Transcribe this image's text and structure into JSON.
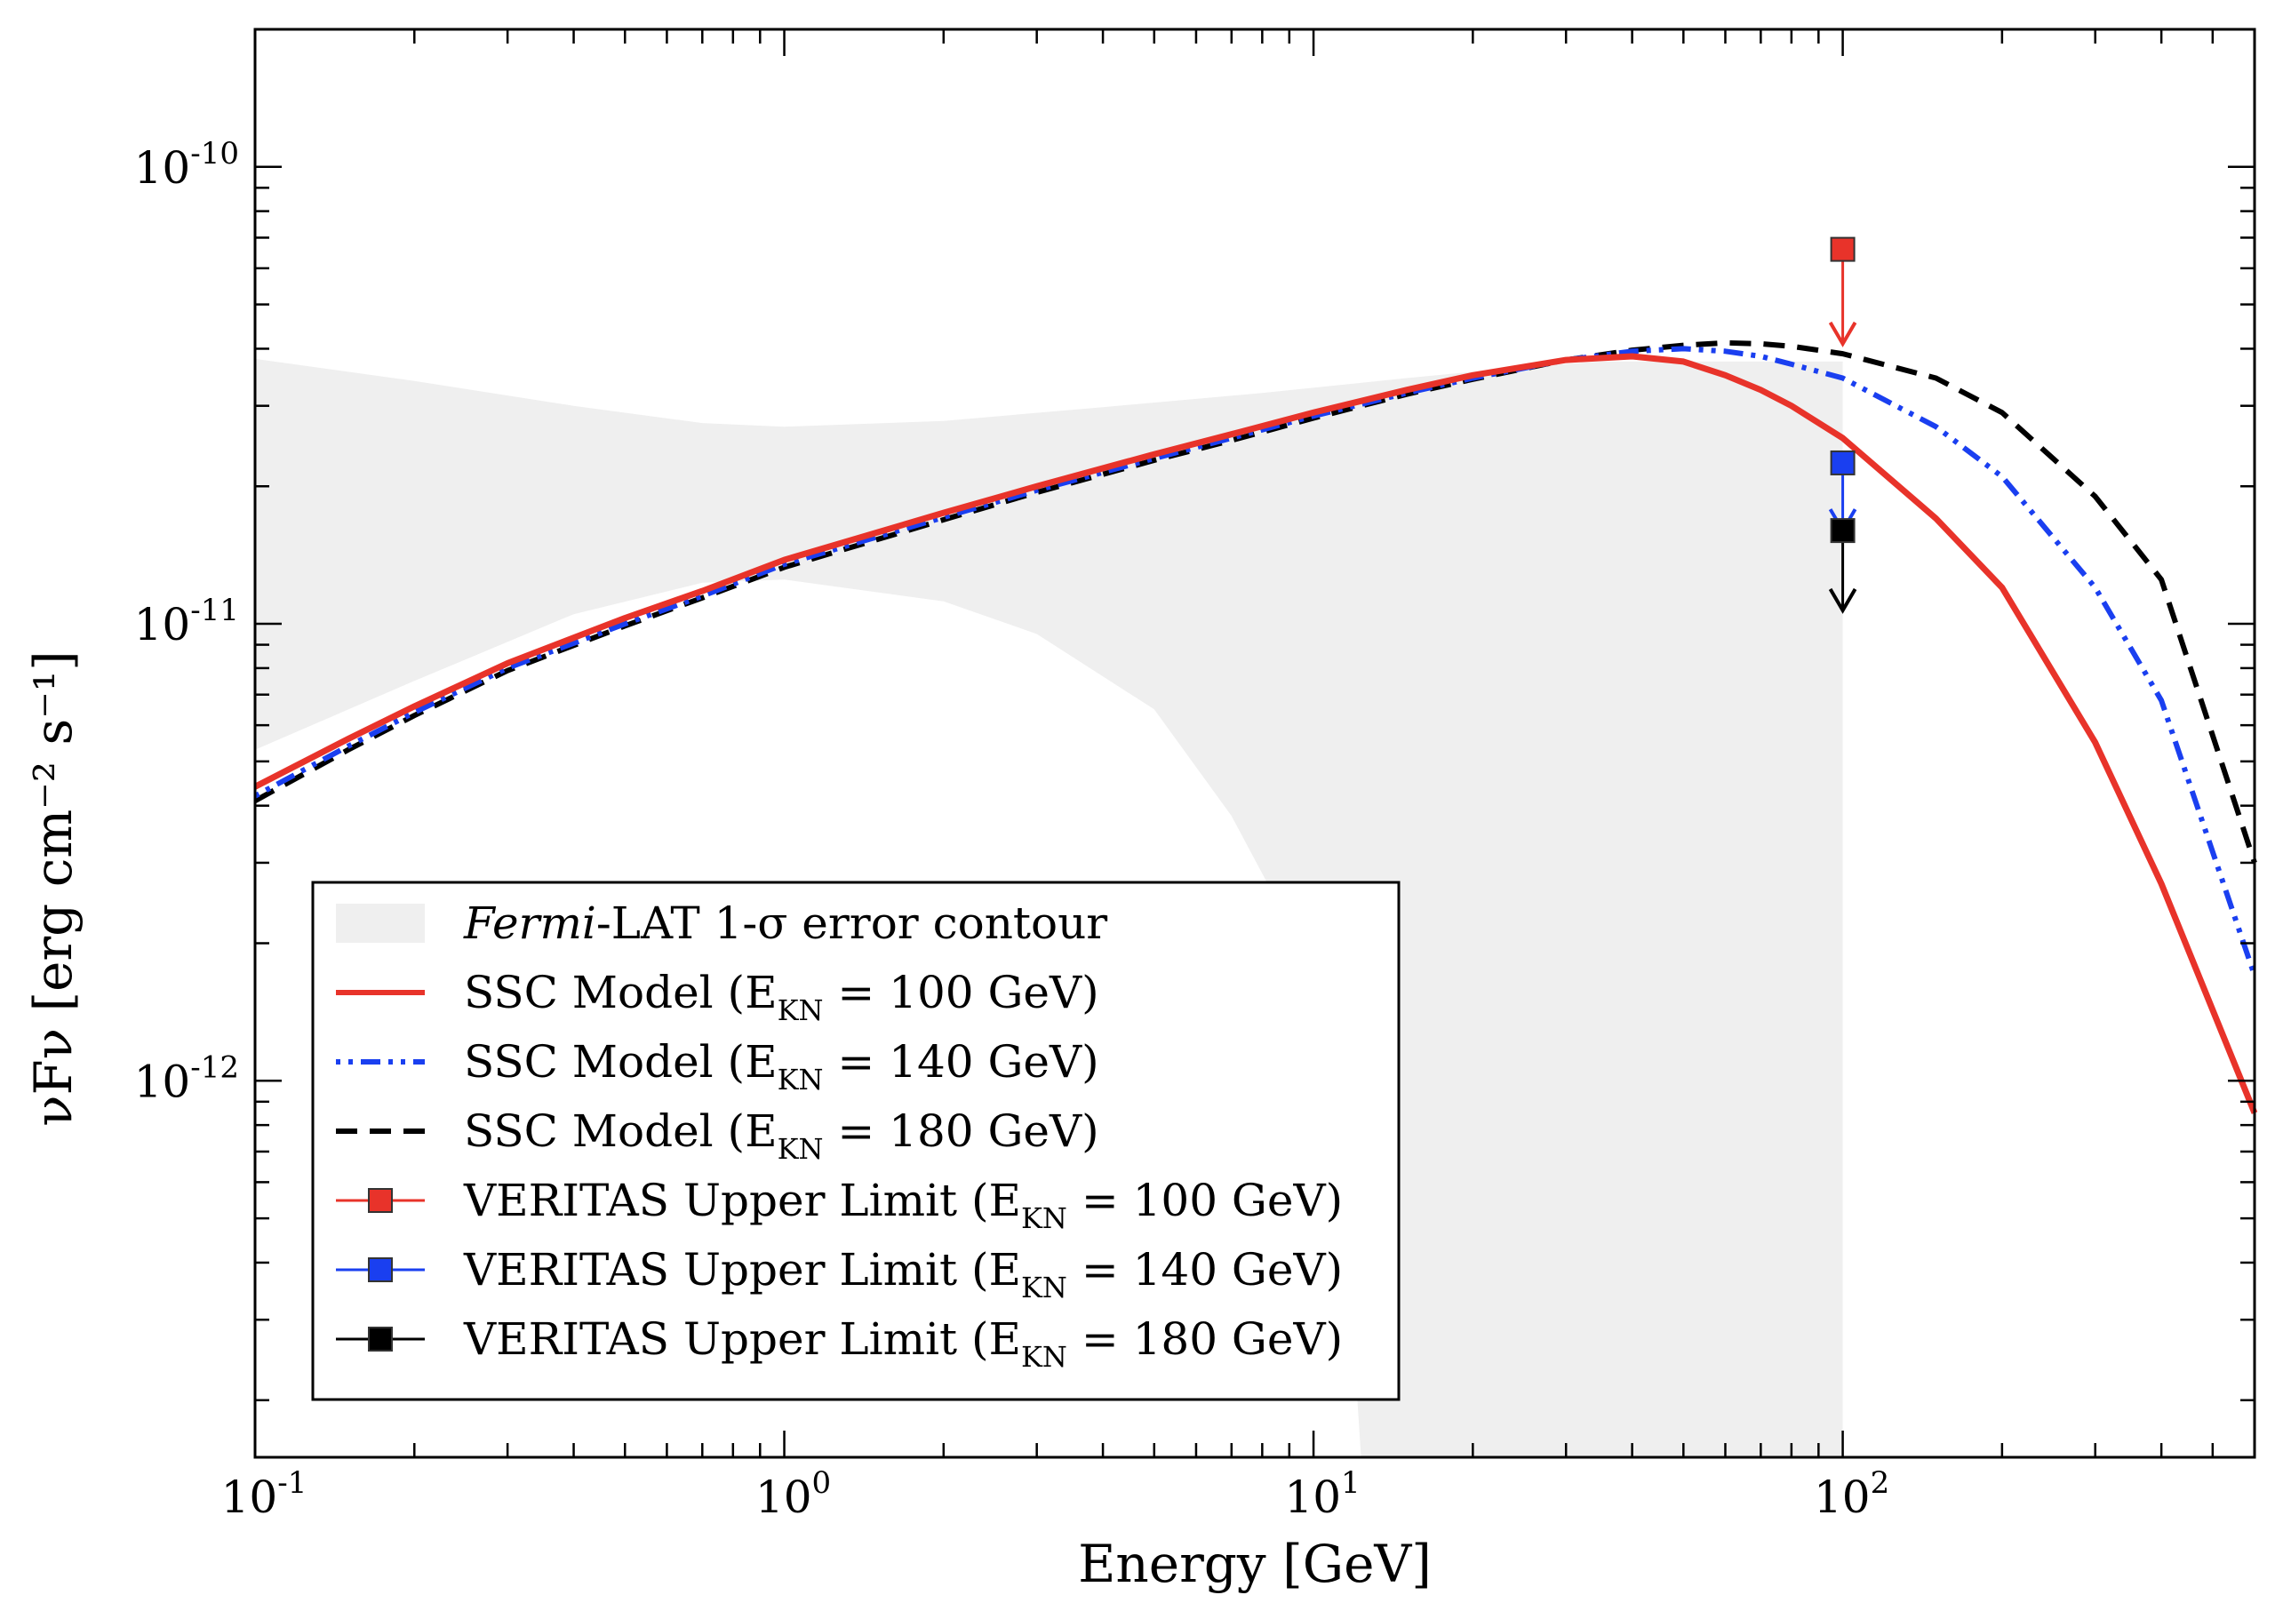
{
  "chart_data": {
    "type": "line",
    "title": "",
    "xlabel": "Energy [GeV]",
    "ylabel": "νFν [erg cm⁻² s⁻¹]",
    "xscale": "log",
    "yscale": "log",
    "xlim": [
      0.1,
      600
    ],
    "ylim": [
      1.5e-13,
      2e-10
    ],
    "x_ticks": [
      {
        "value": 0.1,
        "base": "10",
        "exp": "-1"
      },
      {
        "value": 1,
        "base": "10",
        "exp": "0"
      },
      {
        "value": 10,
        "base": "10",
        "exp": "1"
      },
      {
        "value": 100,
        "base": "10",
        "exp": "2"
      }
    ],
    "y_ticks": [
      {
        "value": 1e-12,
        "base": "10",
        "exp": "-12"
      },
      {
        "value": 1e-11,
        "base": "10",
        "exp": "-11"
      },
      {
        "value": 1e-10,
        "base": "10",
        "exp": "-10"
      }
    ],
    "band": {
      "name": "Fermi-LAT 1-σ error contour",
      "label_italic": "Fermi",
      "label_rest": "-LAT 1-σ error contour",
      "color": "#efefef",
      "upper": [
        [
          0.1,
          3.8e-11
        ],
        [
          0.2,
          3.4e-11
        ],
        [
          0.4,
          3e-11
        ],
        [
          0.7,
          2.75e-11
        ],
        [
          1,
          2.7e-11
        ],
        [
          2,
          2.78e-11
        ],
        [
          4,
          2.98e-11
        ],
        [
          8,
          3.2e-11
        ],
        [
          15,
          3.45e-11
        ],
        [
          25,
          3.65e-11
        ],
        [
          35,
          3.75e-11
        ]
      ],
      "lower": [
        [
          0.1,
          5.3e-12
        ],
        [
          0.2,
          7.5e-12
        ],
        [
          0.4,
          1.05e-11
        ],
        [
          0.7,
          1.23e-11
        ],
        [
          1,
          1.25e-11
        ],
        [
          2,
          1.12e-11
        ],
        [
          3,
          9.5e-12
        ],
        [
          5,
          6.5e-12
        ],
        [
          7,
          3.8e-12
        ],
        [
          9,
          2.2e-12
        ],
        [
          10.5,
          1e-12
        ],
        [
          11.5,
          5e-13
        ],
        [
          12.3,
          1.5e-13
        ]
      ],
      "right_edge_x": 100
    },
    "series": [
      {
        "name": "SSC Model (E_KN = 100 GeV)",
        "label_main": "SSC Model (E",
        "label_sub": "KN",
        "label_end": " = 100 GeV)",
        "color": "#e8332a",
        "style": "solid",
        "x": [
          0.1,
          0.15,
          0.2,
          0.3,
          0.5,
          0.7,
          1,
          2,
          3,
          5,
          7,
          10,
          15,
          20,
          30,
          40,
          50,
          60,
          70,
          80,
          100,
          150,
          200,
          300,
          400,
          600
        ],
        "y": [
          4.4e-12,
          5.6e-12,
          6.6e-12,
          8.2e-12,
          1.03e-11,
          1.18e-11,
          1.38e-11,
          1.75e-11,
          2e-11,
          2.35e-11,
          2.6e-11,
          2.9e-11,
          3.25e-11,
          3.5e-11,
          3.78e-11,
          3.85e-11,
          3.75e-11,
          3.5e-11,
          3.25e-11,
          3e-11,
          2.55e-11,
          1.7e-11,
          1.2e-11,
          5.5e-12,
          2.7e-12,
          8.5e-13
        ]
      },
      {
        "name": "SSC Model (E_KN = 140 GeV)",
        "label_main": "SSC Model (E",
        "label_sub": "KN",
        "label_end": " = 140 GeV)",
        "color": "#1a3ff0",
        "style": "dotdash",
        "x": [
          0.1,
          0.15,
          0.2,
          0.3,
          0.5,
          0.7,
          1,
          2,
          3,
          5,
          7,
          10,
          15,
          20,
          30,
          40,
          50,
          60,
          70,
          80,
          100,
          150,
          200,
          300,
          400,
          600
        ],
        "y": [
          4.2e-12,
          5.4e-12,
          6.4e-12,
          8e-12,
          1e-11,
          1.15e-11,
          1.35e-11,
          1.71e-11,
          1.96e-11,
          2.3e-11,
          2.55e-11,
          2.85e-11,
          3.2e-11,
          3.45e-11,
          3.78e-11,
          3.95e-11,
          4e-11,
          3.95e-11,
          3.85e-11,
          3.7e-11,
          3.45e-11,
          2.7e-11,
          2.1e-11,
          1.2e-11,
          6.8e-12,
          1.7e-12
        ]
      },
      {
        "name": "SSC Model (E_KN = 180 GeV)",
        "label_main": "SSC Model (E",
        "label_sub": "KN",
        "label_end": " = 180 GeV)",
        "color": "#000000",
        "style": "dashed",
        "x": [
          0.1,
          0.15,
          0.2,
          0.3,
          0.5,
          0.7,
          1,
          2,
          3,
          5,
          7,
          10,
          15,
          20,
          30,
          40,
          50,
          60,
          70,
          80,
          100,
          150,
          200,
          300,
          400,
          600
        ],
        "y": [
          4.1e-12,
          5.3e-12,
          6.3e-12,
          7.9e-12,
          9.9e-12,
          1.14e-11,
          1.33e-11,
          1.69e-11,
          1.94e-11,
          2.28e-11,
          2.52e-11,
          2.82e-11,
          3.18e-11,
          3.43e-11,
          3.78e-11,
          3.97e-11,
          4.07e-11,
          4.12e-11,
          4.1e-11,
          4.05e-11,
          3.9e-11,
          3.45e-11,
          2.9e-11,
          1.9e-11,
          1.25e-11,
          3e-12
        ]
      }
    ],
    "upper_limits": [
      {
        "name": "VERITAS Upper Limit (E_KN = 100 GeV)",
        "label_main": "VERITAS Upper Limit (E",
        "label_sub": "KN",
        "label_end": " = 100 GeV)",
        "color": "#e8332a",
        "x": 100,
        "y": 6.6e-11,
        "arrow_to": 4.1e-11
      },
      {
        "name": "VERITAS Upper Limit (E_KN = 140 GeV)",
        "label_main": "VERITAS Upper Limit (E",
        "label_sub": "KN",
        "label_end": " = 140 GeV)",
        "color": "#1a3ff0",
        "x": 100,
        "y": 2.25e-11,
        "arrow_to": 1.6e-11
      },
      {
        "name": "VERITAS Upper Limit (E_KN = 180 GeV)",
        "label_main": "VERITAS Upper Limit (E",
        "label_sub": "KN",
        "label_end": " = 180 GeV)",
        "color": "#000000",
        "x": 100,
        "y": 1.6e-11,
        "arrow_to": 1.07e-11
      }
    ],
    "legend_position": "lower-left",
    "grid": false
  }
}
